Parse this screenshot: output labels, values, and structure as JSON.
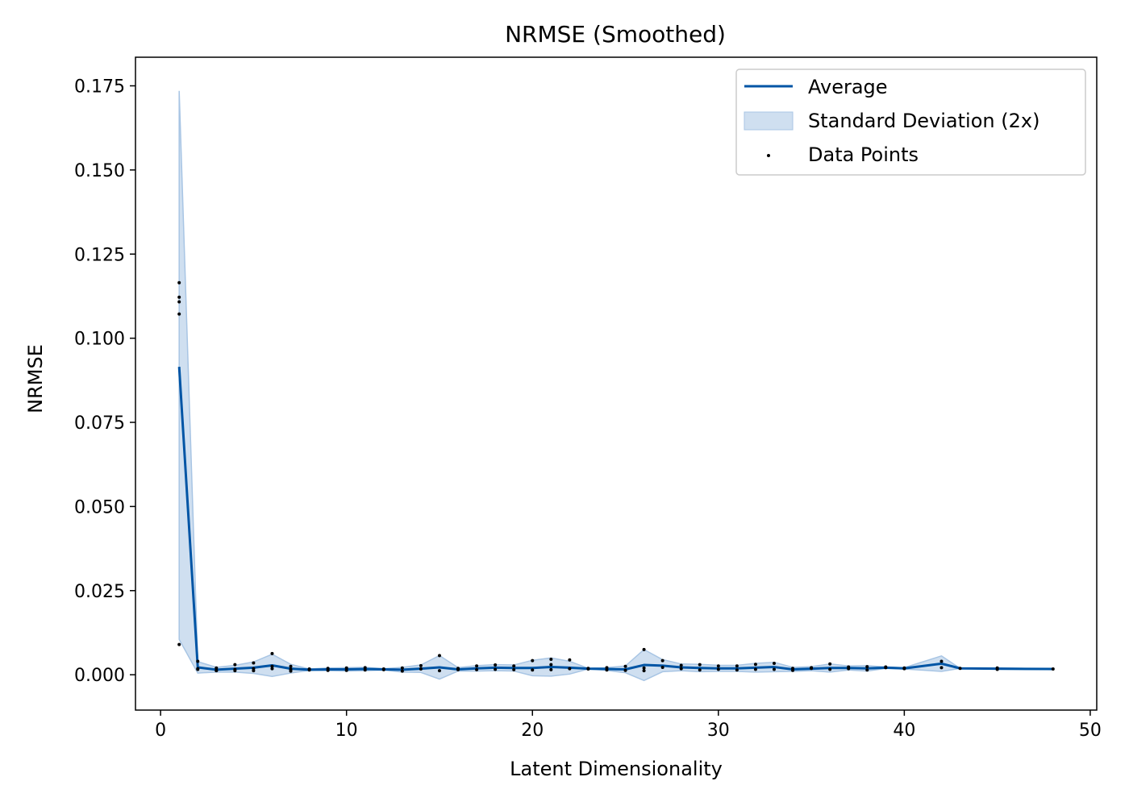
{
  "chart_data": {
    "type": "line",
    "title": "NRMSE (Smoothed)",
    "xlabel": "Latent Dimensionality",
    "ylabel": "NRMSE",
    "xlim": [
      -1.35,
      50.35
    ],
    "ylim": [
      -0.0105,
      0.1835
    ],
    "xticks": [
      0,
      10,
      20,
      30,
      40,
      50
    ],
    "yticks": [
      0.0,
      0.025,
      0.05,
      0.075,
      0.1,
      0.125,
      0.15,
      0.175
    ],
    "xtick_labels": [
      "0",
      "10",
      "20",
      "30",
      "40",
      "50"
    ],
    "ytick_labels": [
      "0.000",
      "0.025",
      "0.050",
      "0.075",
      "0.100",
      "0.125",
      "0.150",
      "0.175"
    ],
    "grid": false,
    "legend_position": "upper-right",
    "legend": {
      "average": "Average",
      "std": "Standard Deviation (2x)",
      "points": "Data Points"
    },
    "colors": {
      "line": "#0055a5",
      "band": "#a8c5e4",
      "points": "#000000"
    },
    "series": [
      {
        "name": "Average",
        "x": [
          1,
          2,
          3,
          4,
          5,
          6,
          7,
          8,
          9,
          10,
          11,
          12,
          13,
          14,
          15,
          16,
          17,
          18,
          19,
          20,
          21,
          22,
          23,
          24,
          25,
          26,
          27,
          28,
          29,
          30,
          31,
          32,
          33,
          34,
          35,
          36,
          37,
          38,
          39,
          40,
          42,
          43,
          45,
          48
        ],
        "y": [
          0.0915,
          0.0022,
          0.0015,
          0.0018,
          0.0021,
          0.0028,
          0.0018,
          0.0015,
          0.0016,
          0.0016,
          0.0017,
          0.0016,
          0.0015,
          0.0018,
          0.0022,
          0.0016,
          0.0019,
          0.0021,
          0.002,
          0.002,
          0.0023,
          0.0021,
          0.0018,
          0.0017,
          0.0016,
          0.0029,
          0.0027,
          0.0022,
          0.002,
          0.0019,
          0.0019,
          0.0021,
          0.0023,
          0.0016,
          0.0018,
          0.002,
          0.002,
          0.0019,
          0.0021,
          0.0019,
          0.0033,
          0.0019,
          0.0018,
          0.0017
        ],
        "lower": [
          0.0105,
          0.0005,
          0.0008,
          0.0008,
          0.0004,
          -0.0005,
          0.0005,
          0.0013,
          0.0012,
          0.0011,
          0.0012,
          0.0014,
          0.0008,
          0.0007,
          -0.0013,
          0.0011,
          0.0011,
          0.0012,
          0.0011,
          -0.0003,
          -0.0004,
          0.0002,
          0.0017,
          0.0013,
          0.0006,
          -0.0017,
          0.0009,
          0.0012,
          0.0009,
          0.001,
          0.001,
          0.0008,
          0.0009,
          0.001,
          0.0012,
          0.0008,
          0.0014,
          0.0011,
          0.0019,
          0.0017,
          0.001,
          0.0019,
          0.0016,
          0.0016
        ],
        "upper": [
          0.1735,
          0.0039,
          0.0022,
          0.0028,
          0.0038,
          0.0061,
          0.0031,
          0.0017,
          0.002,
          0.0021,
          0.0022,
          0.0018,
          0.0022,
          0.0029,
          0.0057,
          0.0021,
          0.0027,
          0.003,
          0.0029,
          0.0043,
          0.005,
          0.004,
          0.0019,
          0.0021,
          0.0026,
          0.0075,
          0.0045,
          0.0032,
          0.0031,
          0.0028,
          0.0028,
          0.0034,
          0.0037,
          0.0022,
          0.0024,
          0.0032,
          0.0026,
          0.0027,
          0.0023,
          0.0021,
          0.0056,
          0.0019,
          0.002,
          0.0018
        ]
      }
    ],
    "points": [
      {
        "x": 1,
        "y": 0.1165
      },
      {
        "x": 1,
        "y": 0.1122
      },
      {
        "x": 1,
        "y": 0.1108
      },
      {
        "x": 1,
        "y": 0.1072
      },
      {
        "x": 1,
        "y": 0.009
      },
      {
        "x": 2,
        "y": 0.004
      },
      {
        "x": 2,
        "y": 0.0018
      },
      {
        "x": 2,
        "y": 0.0016
      },
      {
        "x": 3,
        "y": 0.002
      },
      {
        "x": 3,
        "y": 0.0013
      },
      {
        "x": 3,
        "y": 0.0012
      },
      {
        "x": 4,
        "y": 0.003
      },
      {
        "x": 4,
        "y": 0.0016
      },
      {
        "x": 4,
        "y": 0.0012
      },
      {
        "x": 5,
        "y": 0.0035
      },
      {
        "x": 5,
        "y": 0.0018
      },
      {
        "x": 5,
        "y": 0.0012
      },
      {
        "x": 6,
        "y": 0.0063
      },
      {
        "x": 6,
        "y": 0.0025
      },
      {
        "x": 6,
        "y": 0.0018
      },
      {
        "x": 7,
        "y": 0.0025
      },
      {
        "x": 7,
        "y": 0.0016
      },
      {
        "x": 7,
        "y": 0.0011
      },
      {
        "x": 8,
        "y": 0.0017
      },
      {
        "x": 8,
        "y": 0.0014
      },
      {
        "x": 9,
        "y": 0.0019
      },
      {
        "x": 9,
        "y": 0.0013
      },
      {
        "x": 10,
        "y": 0.002
      },
      {
        "x": 10,
        "y": 0.0013
      },
      {
        "x": 11,
        "y": 0.0021
      },
      {
        "x": 11,
        "y": 0.0014
      },
      {
        "x": 12,
        "y": 0.0017
      },
      {
        "x": 12,
        "y": 0.0015
      },
      {
        "x": 13,
        "y": 0.002
      },
      {
        "x": 13,
        "y": 0.0011
      },
      {
        "x": 14,
        "y": 0.0027
      },
      {
        "x": 14,
        "y": 0.0017
      },
      {
        "x": 15,
        "y": 0.0057
      },
      {
        "x": 15,
        "y": 0.0012
      },
      {
        "x": 16,
        "y": 0.0019
      },
      {
        "x": 16,
        "y": 0.0015
      },
      {
        "x": 17,
        "y": 0.0026
      },
      {
        "x": 17,
        "y": 0.0015
      },
      {
        "x": 18,
        "y": 0.0029
      },
      {
        "x": 18,
        "y": 0.0016
      },
      {
        "x": 19,
        "y": 0.0026
      },
      {
        "x": 19,
        "y": 0.0015
      },
      {
        "x": 20,
        "y": 0.0042
      },
      {
        "x": 20,
        "y": 0.0014
      },
      {
        "x": 21,
        "y": 0.0046
      },
      {
        "x": 21,
        "y": 0.003
      },
      {
        "x": 21,
        "y": 0.0015
      },
      {
        "x": 22,
        "y": 0.0044
      },
      {
        "x": 22,
        "y": 0.0018
      },
      {
        "x": 23,
        "y": 0.0019
      },
      {
        "x": 23,
        "y": 0.0017
      },
      {
        "x": 24,
        "y": 0.0021
      },
      {
        "x": 24,
        "y": 0.0014
      },
      {
        "x": 25,
        "y": 0.0025
      },
      {
        "x": 25,
        "y": 0.0013
      },
      {
        "x": 26,
        "y": 0.0075
      },
      {
        "x": 26,
        "y": 0.002
      },
      {
        "x": 26,
        "y": 0.0012
      },
      {
        "x": 27,
        "y": 0.0042
      },
      {
        "x": 27,
        "y": 0.0022
      },
      {
        "x": 28,
        "y": 0.0028
      },
      {
        "x": 28,
        "y": 0.0018
      },
      {
        "x": 29,
        "y": 0.003
      },
      {
        "x": 29,
        "y": 0.0014
      },
      {
        "x": 30,
        "y": 0.0026
      },
      {
        "x": 30,
        "y": 0.0016
      },
      {
        "x": 31,
        "y": 0.0026
      },
      {
        "x": 31,
        "y": 0.0014
      },
      {
        "x": 32,
        "y": 0.0031
      },
      {
        "x": 32,
        "y": 0.0016
      },
      {
        "x": 33,
        "y": 0.0034
      },
      {
        "x": 33,
        "y": 0.0016
      },
      {
        "x": 34,
        "y": 0.0019
      },
      {
        "x": 34,
        "y": 0.0013
      },
      {
        "x": 35,
        "y": 0.0021
      },
      {
        "x": 35,
        "y": 0.0019
      },
      {
        "x": 36,
        "y": 0.0032
      },
      {
        "x": 36,
        "y": 0.0016
      },
      {
        "x": 37,
        "y": 0.0023
      },
      {
        "x": 37,
        "y": 0.0018
      },
      {
        "x": 38,
        "y": 0.0024
      },
      {
        "x": 38,
        "y": 0.0014
      },
      {
        "x": 39,
        "y": 0.0023
      },
      {
        "x": 39,
        "y": 0.0021
      },
      {
        "x": 40,
        "y": 0.002
      },
      {
        "x": 40,
        "y": 0.0018
      },
      {
        "x": 42,
        "y": 0.004
      },
      {
        "x": 42,
        "y": 0.0021
      },
      {
        "x": 43,
        "y": 0.0019
      },
      {
        "x": 45,
        "y": 0.002
      },
      {
        "x": 45,
        "y": 0.0016
      },
      {
        "x": 48,
        "y": 0.0017
      }
    ]
  }
}
